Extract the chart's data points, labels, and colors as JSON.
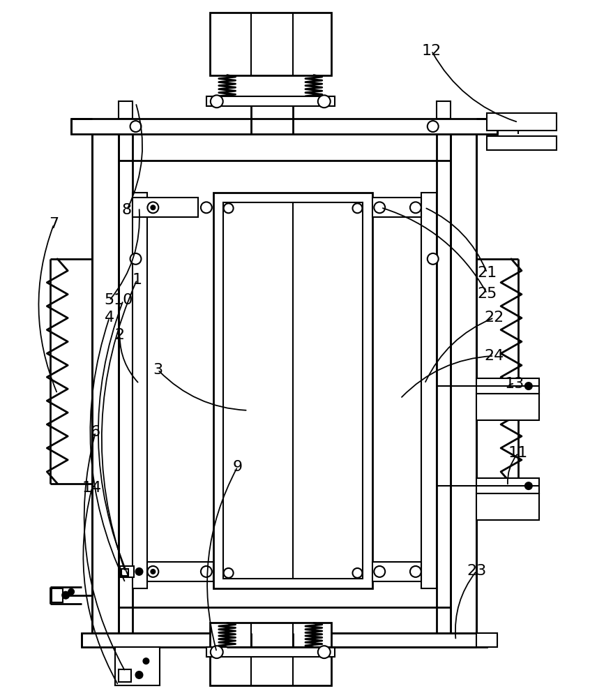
{
  "bg_color": "#ffffff",
  "lw": 2.0,
  "lw_thin": 1.5,
  "fig_w": 8.56,
  "fig_h": 10.0
}
